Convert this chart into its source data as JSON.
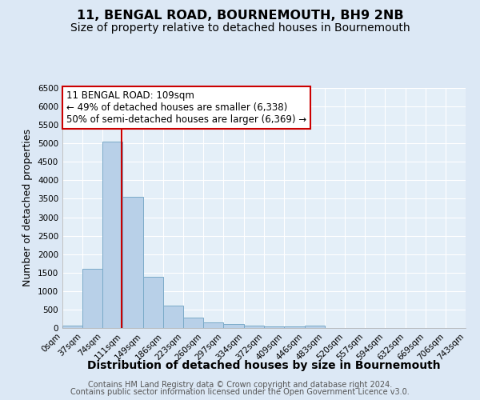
{
  "title": "11, BENGAL ROAD, BOURNEMOUTH, BH9 2NB",
  "subtitle": "Size of property relative to detached houses in Bournemouth",
  "xlabel": "Distribution of detached houses by size in Bournemouth",
  "ylabel": "Number of detached properties",
  "footer_line1": "Contains HM Land Registry data © Crown copyright and database right 2024.",
  "footer_line2": "Contains public sector information licensed under the Open Government Licence v3.0.",
  "annotation_title": "11 BENGAL ROAD: 109sqm",
  "annotation_line2": "← 49% of detached houses are smaller (6,338)",
  "annotation_line3": "50% of semi-detached houses are larger (6,369) →",
  "bar_color": "#b8d0e8",
  "bar_edge_color": "#7aaac8",
  "vline_color": "#cc0000",
  "vline_x": 109,
  "bin_edges": [
    0,
    37,
    74,
    111,
    149,
    186,
    223,
    260,
    297,
    334,
    372,
    409,
    446,
    483,
    520,
    557,
    594,
    632,
    669,
    706,
    743
  ],
  "bar_heights": [
    75,
    1600,
    5050,
    3550,
    1390,
    600,
    290,
    150,
    100,
    65,
    50,
    40,
    70,
    0,
    0,
    0,
    0,
    0,
    0,
    0
  ],
  "ylim": [
    0,
    6500
  ],
  "yticks": [
    0,
    500,
    1000,
    1500,
    2000,
    2500,
    3000,
    3500,
    4000,
    4500,
    5000,
    5500,
    6000,
    6500
  ],
  "bg_color": "#dce8f5",
  "plot_bg_color": "#e4eff8",
  "grid_color": "#ffffff",
  "title_fontsize": 11.5,
  "subtitle_fontsize": 10,
  "xlabel_fontsize": 10,
  "ylabel_fontsize": 9,
  "tick_fontsize": 7.5,
  "annotation_box_color": "#ffffff",
  "annotation_box_edge": "#cc0000",
  "annotation_fontsize": 8.5,
  "footer_fontsize": 7
}
